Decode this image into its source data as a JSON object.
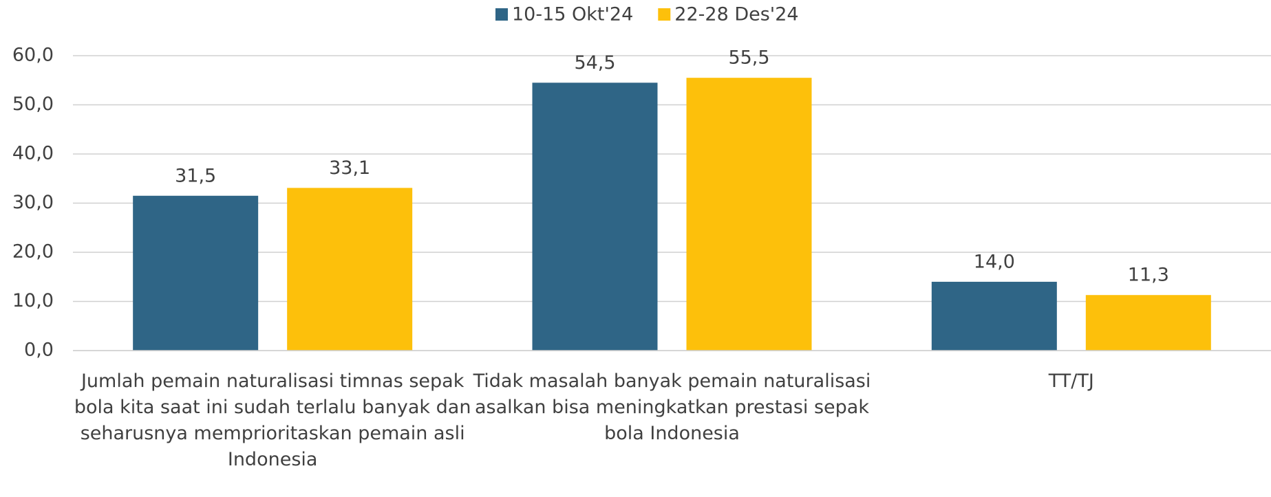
{
  "chart_data": {
    "type": "bar",
    "categories": [
      "Jumlah pemain naturalisasi timnas sepak bola kita saat ini sudah terlalu banyak dan seharusnya memprioritaskan pemain asli Indonesia",
      "Tidak masalah banyak pemain naturalisasi asalkan bisa meningkatkan prestasi sepak bola Indonesia",
      "TT/TJ"
    ],
    "series": [
      {
        "name": "10-15 Okt'24",
        "color": "#2f6586",
        "values": [
          31.5,
          54.5,
          14.0
        ],
        "value_labels": [
          "31,5",
          "54,5",
          "14,0"
        ]
      },
      {
        "name": "22-28 Des'24",
        "color": "#fdc00b",
        "values": [
          33.1,
          55.5,
          11.3
        ],
        "value_labels": [
          "33,1",
          "55,5",
          "11,3"
        ]
      }
    ],
    "ylim": [
      0,
      60
    ],
    "yticks": [
      {
        "value": 0,
        "label": "0,0"
      },
      {
        "value": 10,
        "label": "10,0"
      },
      {
        "value": 20,
        "label": "20,0"
      },
      {
        "value": 30,
        "label": "30,0"
      },
      {
        "value": 40,
        "label": "40,0"
      },
      {
        "value": 50,
        "label": "50,0"
      },
      {
        "value": 60,
        "label": "60,0"
      }
    ],
    "grid": true,
    "legend": "top"
  }
}
